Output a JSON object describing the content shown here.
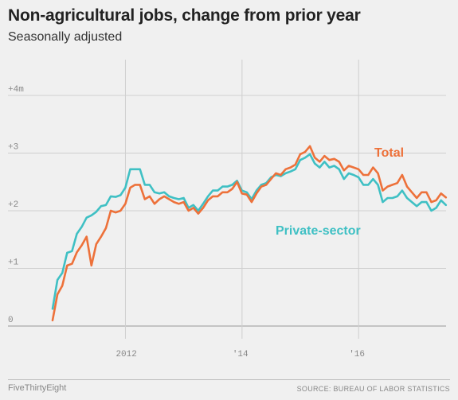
{
  "header": {
    "title": "Non-agricultural jobs, change from prior year",
    "subtitle": "Seasonally adjusted"
  },
  "footer": {
    "brand": "FiveThirtyEight",
    "source": "SOURCE: BUREAU OF LABOR STATISTICS"
  },
  "chart_data": {
    "type": "line",
    "title": "Non-agricultural jobs, change from prior year",
    "subtitle": "Seasonally adjusted",
    "xlabel": "",
    "ylabel": "",
    "x_range": [
      2010.6,
      2017.5
    ],
    "ylim": [
      0,
      4
    ],
    "y_ticks": [
      {
        "value": 4,
        "label": "+4m"
      },
      {
        "value": 3,
        "label": "+3"
      },
      {
        "value": 2,
        "label": "+2"
      },
      {
        "value": 1,
        "label": "+1"
      },
      {
        "value": 0,
        "label": "0"
      }
    ],
    "x_ticks": [
      {
        "value": 2012,
        "label": "2012"
      },
      {
        "value": 2014,
        "label": "'14"
      },
      {
        "value": 2016,
        "label": "'16"
      }
    ],
    "grid": true,
    "colors": {
      "total": "#ed713a",
      "private": "#3fc0c4",
      "grid": "#cfcfcf",
      "baseline": "#999999"
    },
    "series": [
      {
        "name": "Total",
        "key": "total",
        "x_start": 2010.75,
        "x_step": 0.0833,
        "values": [
          0.1,
          0.55,
          0.7,
          1.05,
          1.08,
          1.28,
          1.4,
          1.55,
          1.05,
          1.42,
          1.55,
          1.7,
          2.0,
          1.97,
          2.0,
          2.12,
          2.4,
          2.45,
          2.45,
          2.2,
          2.25,
          2.12,
          2.2,
          2.25,
          2.2,
          2.15,
          2.12,
          2.15,
          2.0,
          2.05,
          1.95,
          2.05,
          2.18,
          2.25,
          2.25,
          2.32,
          2.32,
          2.38,
          2.5,
          2.3,
          2.28,
          2.15,
          2.3,
          2.42,
          2.45,
          2.55,
          2.65,
          2.62,
          2.72,
          2.75,
          2.8,
          2.98,
          3.02,
          3.12,
          2.92,
          2.85,
          2.95,
          2.88,
          2.9,
          2.85,
          2.7,
          2.78,
          2.75,
          2.72,
          2.62,
          2.62,
          2.75,
          2.65,
          2.35,
          2.42,
          2.45,
          2.48,
          2.62,
          2.42,
          2.32,
          2.22,
          2.32,
          2.32,
          2.15,
          2.18,
          2.3,
          2.23
        ]
      },
      {
        "name": "Private-sector",
        "key": "private",
        "x_start": 2010.75,
        "x_step": 0.0833,
        "values": [
          0.3,
          0.8,
          0.92,
          1.27,
          1.3,
          1.6,
          1.72,
          1.88,
          1.92,
          1.98,
          2.08,
          2.1,
          2.25,
          2.24,
          2.27,
          2.4,
          2.72,
          2.72,
          2.72,
          2.45,
          2.45,
          2.32,
          2.3,
          2.32,
          2.25,
          2.22,
          2.2,
          2.22,
          2.05,
          2.1,
          2.0,
          2.12,
          2.25,
          2.35,
          2.35,
          2.42,
          2.42,
          2.45,
          2.52,
          2.35,
          2.32,
          2.2,
          2.35,
          2.45,
          2.48,
          2.58,
          2.62,
          2.6,
          2.65,
          2.68,
          2.72,
          2.88,
          2.92,
          2.98,
          2.82,
          2.75,
          2.85,
          2.75,
          2.78,
          2.72,
          2.55,
          2.65,
          2.62,
          2.58,
          2.45,
          2.45,
          2.55,
          2.45,
          2.15,
          2.22,
          2.22,
          2.25,
          2.35,
          2.22,
          2.15,
          2.08,
          2.15,
          2.15,
          2.0,
          2.05,
          2.18,
          2.1
        ]
      }
    ]
  }
}
